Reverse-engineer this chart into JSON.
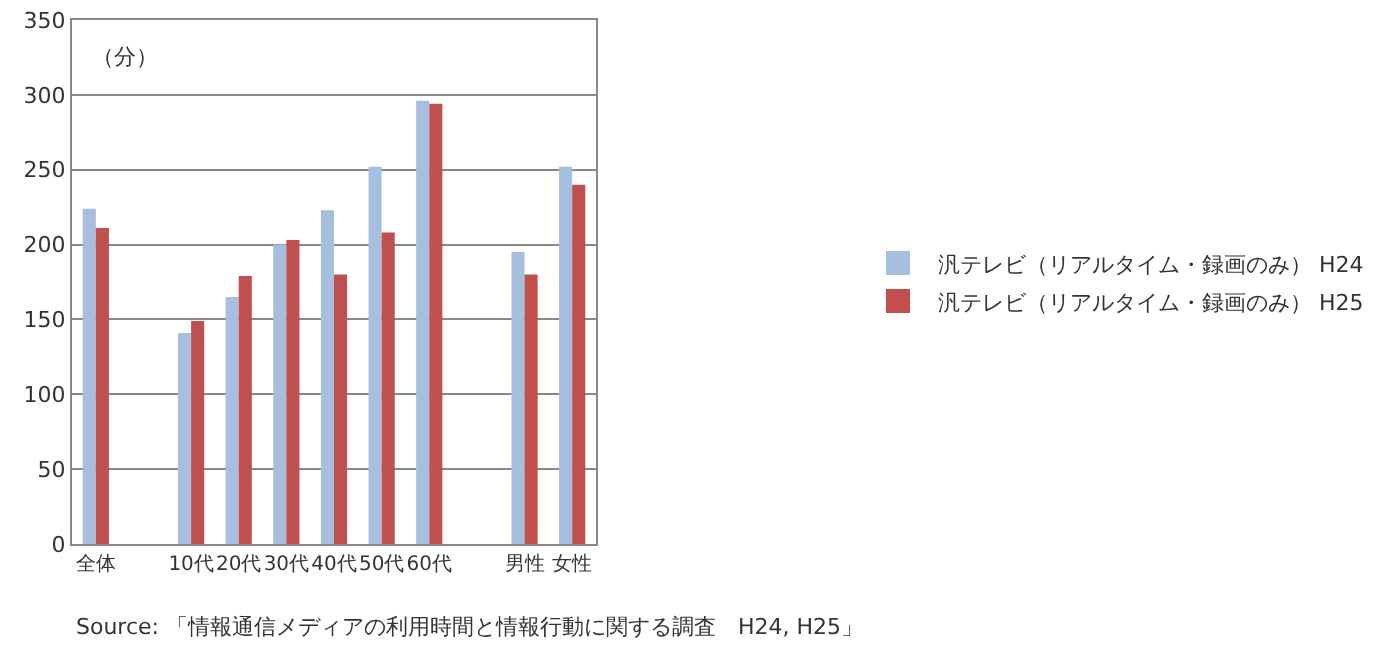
{
  "chart_data": {
    "type": "bar",
    "ylabel": "（分）",
    "categories": [
      "全体",
      null,
      "10代",
      "20代",
      "30代",
      "40代",
      "50代",
      "60代",
      null,
      "男性",
      "女性"
    ],
    "series": [
      {
        "name": "汎テレビ（リアルタイム・録画のみ） H24",
        "color": "#a7bfde",
        "values": [
          224,
          null,
          141,
          165,
          200,
          223,
          252,
          296,
          null,
          195,
          252
        ]
      },
      {
        "name": "汎テレビ（リアルタイム・録画のみ） H25",
        "color": "#c0504d",
        "values": [
          211,
          null,
          149,
          179,
          203,
          180,
          208,
          294,
          null,
          180,
          240
        ]
      }
    ],
    "ylim": [
      0,
      350
    ],
    "yticks": [
      0,
      50,
      100,
      150,
      200,
      250,
      300,
      350
    ],
    "grid": "y",
    "legend": "right",
    "annotations": [
      "Source: 「情報通信メディアの利用時間と情報行動に関する調査　H24, H25」"
    ]
  }
}
